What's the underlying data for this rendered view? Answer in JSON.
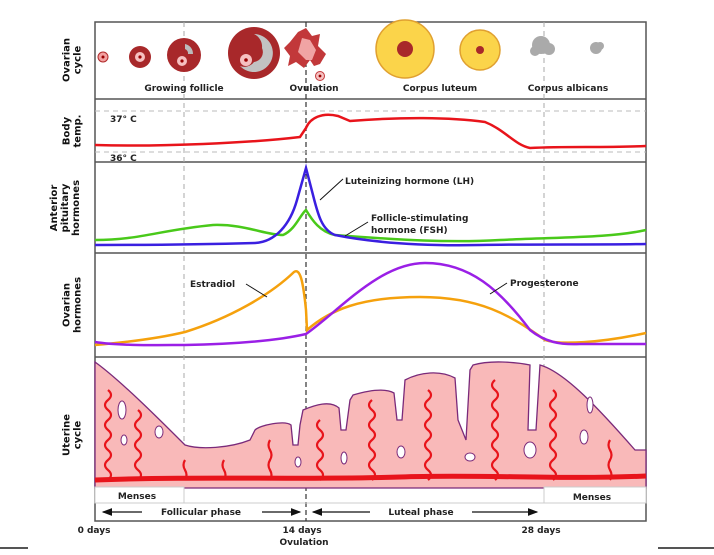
{
  "panels": {
    "ovarian_cycle": "Ovarian\ncycle",
    "body_temp": "Body\ntemp.",
    "anterior_pituitary": "Anterior\npituitary\nhormones",
    "ovarian_hormones": "Ovarian\nhormones",
    "uterine_cycle": "Uterine\ncycle"
  },
  "ovarian_stages": [
    "Growing follicle",
    "Ovulation",
    "Corpus luteum",
    "Corpus albicans"
  ],
  "temperature": {
    "high": "37° C",
    "low": "36° C"
  },
  "hormones": {
    "lh": "Luteinizing hormone (LH)",
    "fsh_line1": "Follicle-stimulating",
    "fsh_line2": "hormone (FSH)",
    "estradiol": "Estradiol",
    "progesterone": "Progesterone"
  },
  "menses": "Menses",
  "phases": {
    "follicular": "Follicular phase",
    "luteal": "Luteal phase"
  },
  "days": {
    "start": "0 days",
    "mid": "14 days",
    "mid_sub": "Ovulation",
    "end": "28 days"
  },
  "colors": {
    "temperature": "#e8141b",
    "lh": "#3a1fe0",
    "fsh": "#49c91a",
    "estradiol": "#f5a10d",
    "progesterone": "#9a1fe6",
    "endometrium": "#f9b9b9",
    "artery": "#e8141b"
  }
}
